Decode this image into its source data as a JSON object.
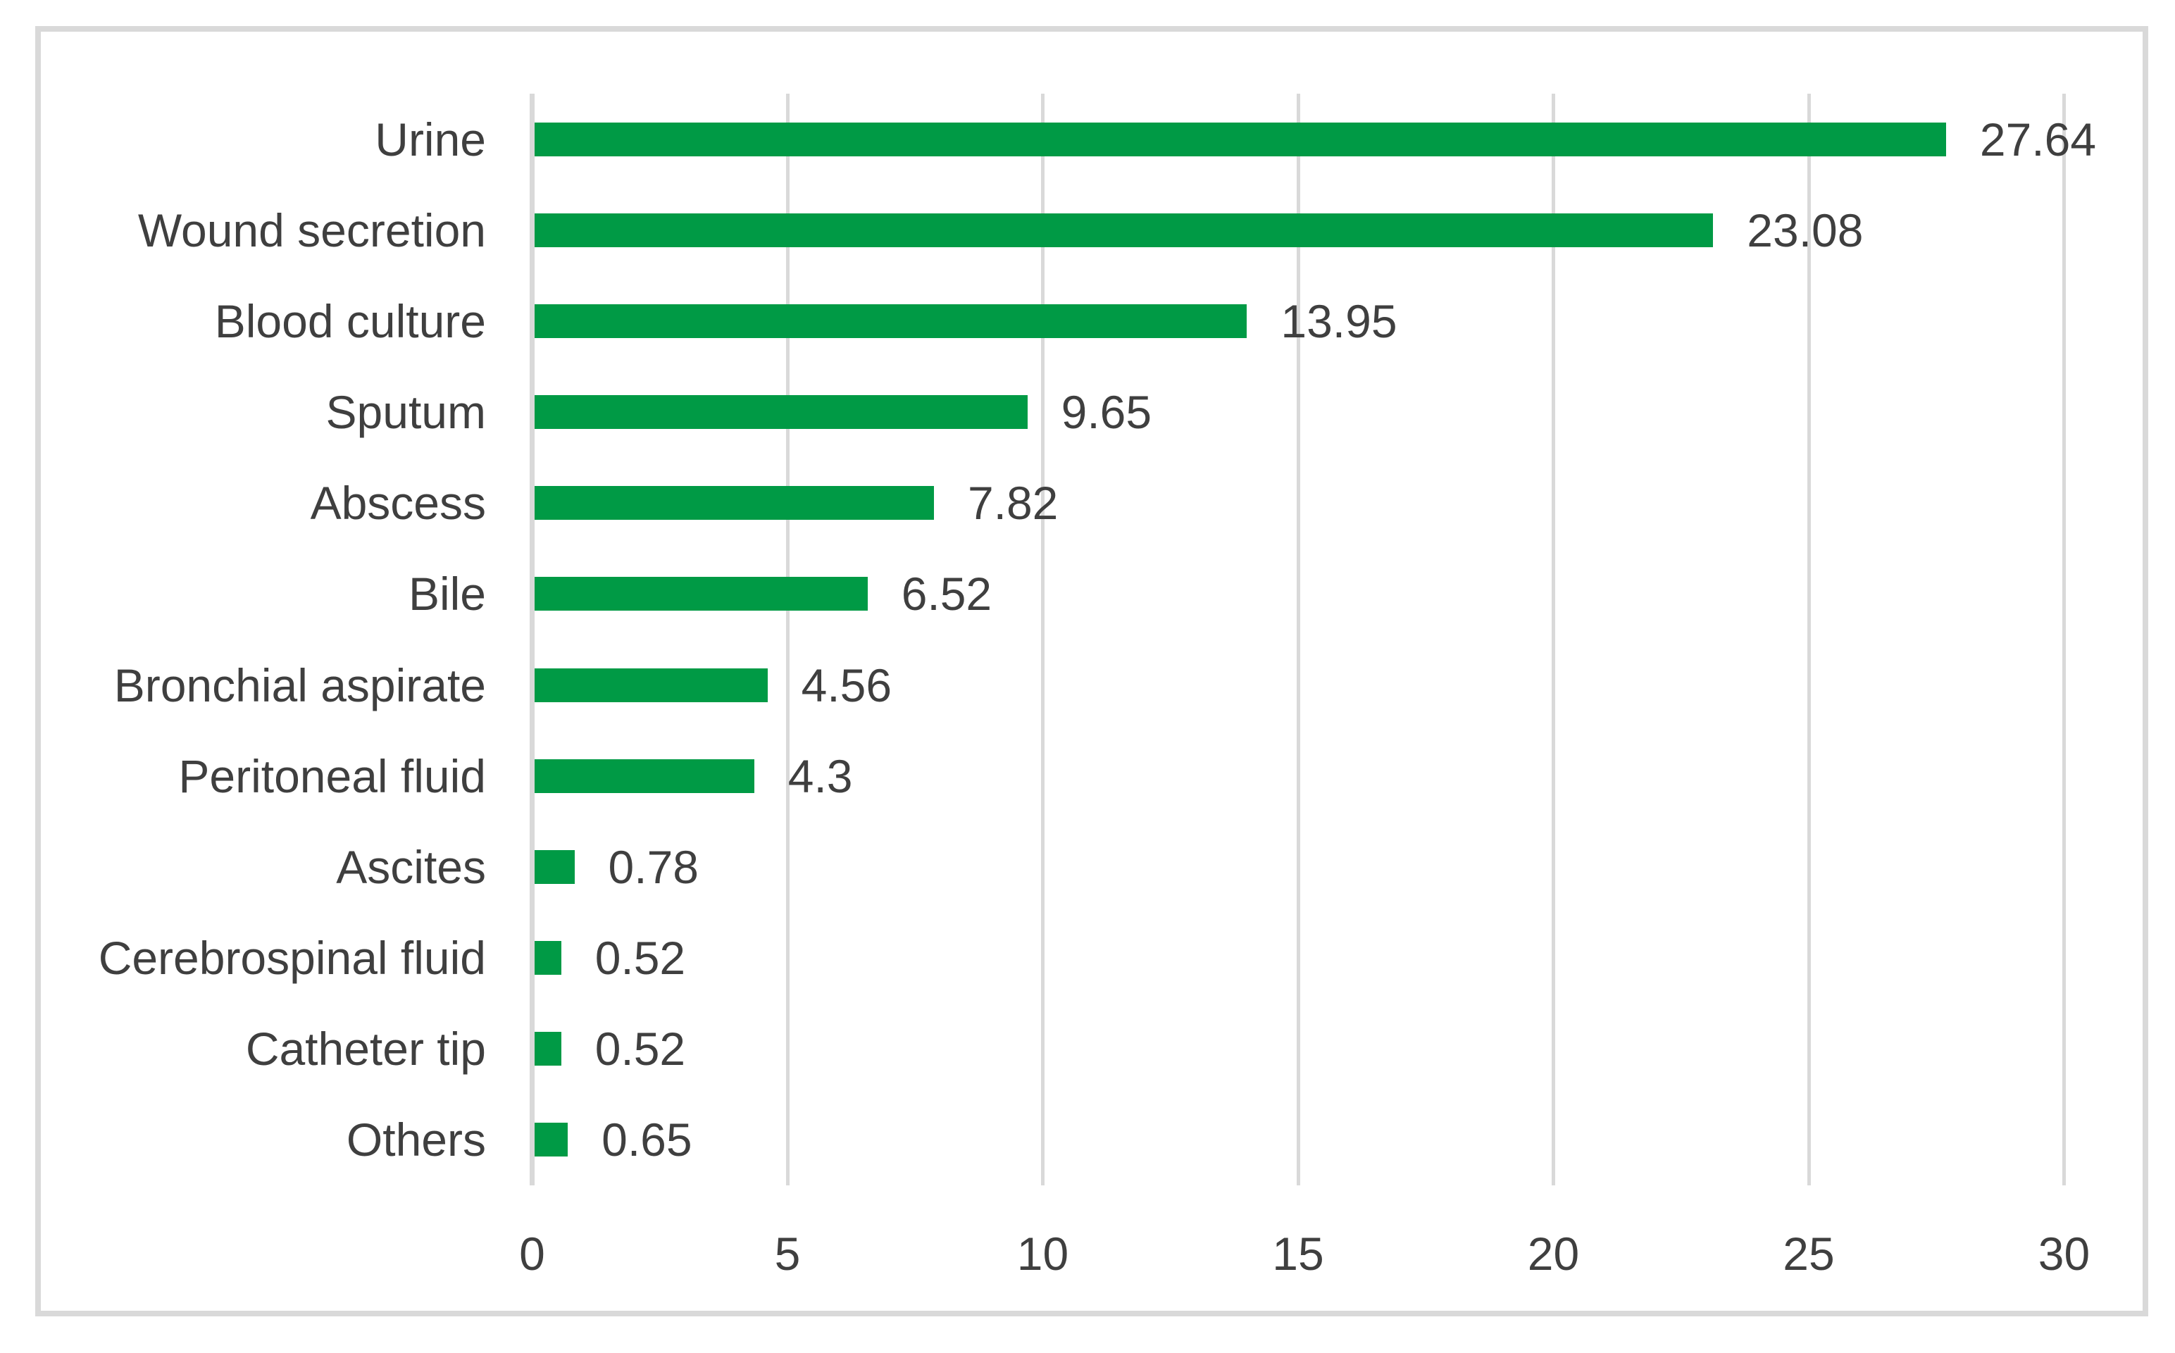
{
  "chart_data": {
    "type": "bar",
    "orientation": "horizontal",
    "title": "",
    "xlabel": "",
    "ylabel": "",
    "categories": [
      "Urine",
      "Wound secretion",
      "Blood culture",
      "Sputum",
      "Abscess",
      "Bile",
      "Bronchial aspirate",
      "Peritoneal fluid",
      "Ascites",
      "Cerebrospinal fluid",
      "Catheter tip",
      "Others"
    ],
    "values": [
      27.64,
      23.08,
      13.95,
      9.65,
      7.82,
      6.52,
      4.56,
      4.3,
      0.78,
      0.52,
      0.52,
      0.65
    ],
    "value_labels": [
      "27.64",
      "23.08",
      "13.95",
      "9.65",
      "7.82",
      "6.52",
      "4.56",
      "4.3",
      "0.78",
      "0.52",
      "0.52",
      "0.65"
    ],
    "xlim": [
      0,
      30
    ],
    "x_ticks": [
      "0",
      "5",
      "10",
      "15",
      "20",
      "25",
      "30"
    ],
    "x_tick_values": [
      0,
      5,
      10,
      15,
      20,
      25,
      30
    ],
    "grid": true,
    "legend": false,
    "colors": {
      "bar": "#009A45",
      "gridline": "#D9D9D9",
      "axis": "#D9D9D9",
      "frame_border": "#D9D9D9",
      "text": "#3F3F3F",
      "background": "#FFFFFF"
    }
  }
}
